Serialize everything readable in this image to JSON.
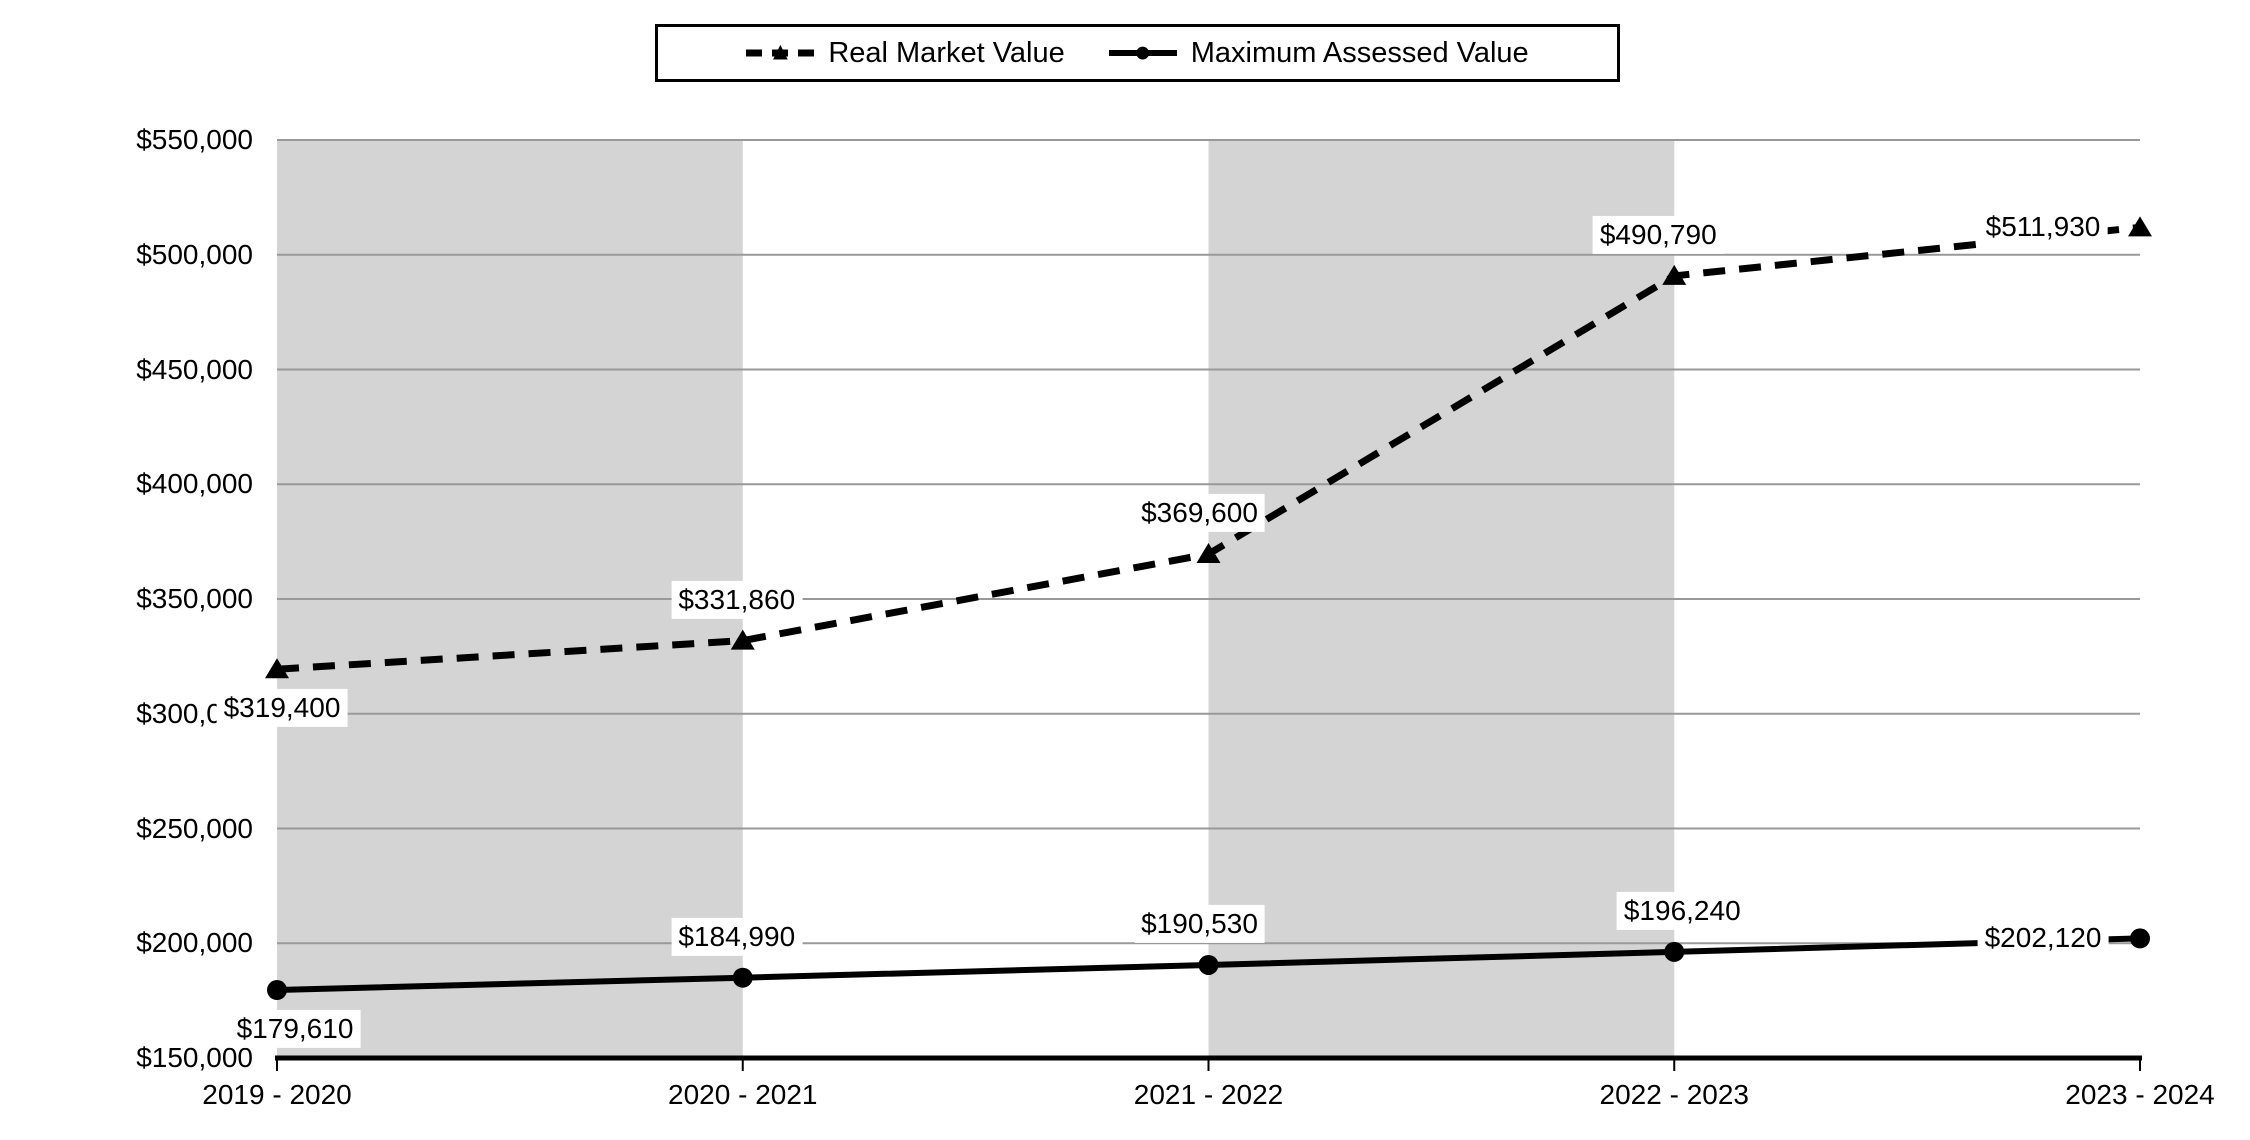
{
  "chart_data": {
    "type": "line",
    "categories": [
      "2019 - 2020",
      "2020 - 2021",
      "2021 - 2022",
      "2022 - 2023",
      "2023 - 2024"
    ],
    "series": [
      {
        "name": "Real Market Value",
        "marker": "triangle",
        "line_style": "dashed",
        "values": [
          319400,
          331860,
          369600,
          490790,
          511930
        ],
        "labels": [
          "$319,400",
          "$331,860",
          "$369,600",
          "$490,790",
          "$511,930"
        ],
        "label_placements": [
          {
            "pos": "below",
            "dx": 5
          },
          {
            "pos": "above",
            "dx": -6
          },
          {
            "pos": "above",
            "dx": -9
          },
          {
            "pos": "above",
            "dx": -16
          },
          {
            "pos": "left",
            "dx": 0
          }
        ]
      },
      {
        "name": "Maximum Assessed Value",
        "marker": "circle",
        "line_style": "solid",
        "values": [
          179610,
          184990,
          190530,
          196240,
          202120
        ],
        "labels": [
          "$179,610",
          "$184,990",
          "$190,530",
          "$196,240",
          "$202,120"
        ],
        "label_placements": [
          {
            "pos": "below",
            "dx": 18
          },
          {
            "pos": "above",
            "dx": -6
          },
          {
            "pos": "above",
            "dx": -9
          },
          {
            "pos": "above",
            "dx": 8
          },
          {
            "pos": "left",
            "dx": 0
          }
        ]
      }
    ],
    "title": "",
    "xlabel": "",
    "ylabel": "",
    "ylim": [
      150000,
      550000
    ],
    "ytick_step": 50000,
    "ytick_labels": [
      "$550,000",
      "$500,000",
      "$450,000",
      "$400,000",
      "$350,000",
      "$300,000",
      "$250,000",
      "$200,000",
      "$150,000"
    ],
    "grid": "horizontal-major",
    "legend_position": "top-center",
    "plot_bands": {
      "between_categories": [
        [
          0,
          1
        ],
        [
          2,
          3
        ]
      ]
    },
    "colors": {
      "series": "#000000",
      "gridline": "#999999",
      "band": "#d4d4d4",
      "axis": "#000000",
      "label_background": "#ffffff",
      "background": "#ffffff"
    }
  }
}
